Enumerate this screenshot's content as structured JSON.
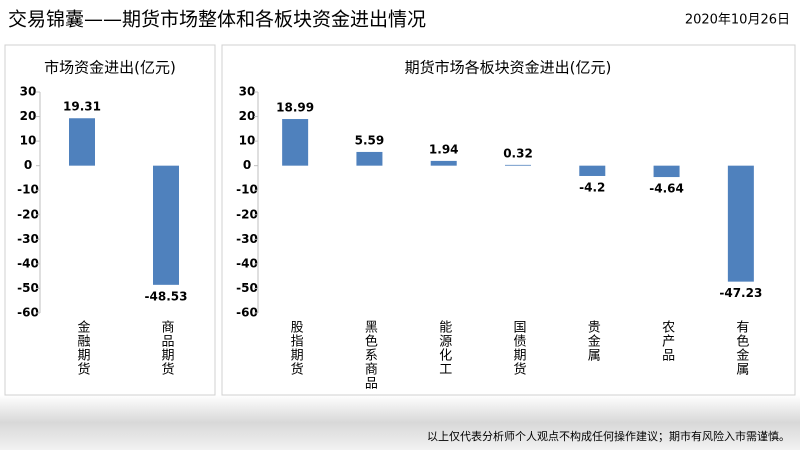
{
  "header": {
    "title": "交易锦囊——期货市场整体和各板块资金进出情况",
    "date": "2020年10月26日"
  },
  "footer": {
    "disclaimer": "以上仅代表分析师个人观点不构成任何操作建议；期市有风险入市需谨慎。"
  },
  "chart_data": [
    {
      "type": "bar",
      "title": "市场资金进出(亿元)",
      "categories": [
        "金融期货",
        "商品期货"
      ],
      "values": [
        19.31,
        -48.53
      ],
      "color": "#4f81bd",
      "ylim": [
        -60,
        30
      ],
      "yticks": [
        30,
        20,
        10,
        0,
        -10,
        -20,
        -30,
        -40,
        -50,
        -60
      ],
      "grid": false
    },
    {
      "type": "bar",
      "title": "期货市场各板块资金进出(亿元)",
      "categories": [
        "股指期货",
        "黑色系商品",
        "能源化工",
        "国债期货",
        "贵金属",
        "农产品",
        "有色金属"
      ],
      "values": [
        18.99,
        5.59,
        1.94,
        0.32,
        -4.2,
        -4.64,
        -47.23
      ],
      "color": "#4f81bd",
      "ylim": [
        -60,
        30
      ],
      "yticks": [
        30,
        20,
        10,
        0,
        -10,
        -20,
        -30,
        -40,
        -50,
        -60
      ],
      "grid": false
    }
  ]
}
